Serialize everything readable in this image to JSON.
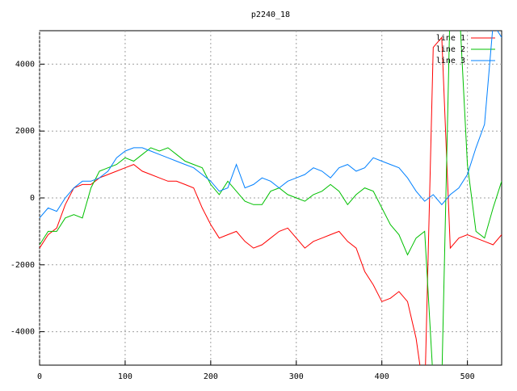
{
  "chart_data": {
    "type": "line",
    "title": "p2240_18",
    "x": [
      0,
      10,
      20,
      30,
      40,
      50,
      60,
      70,
      80,
      90,
      100,
      110,
      120,
      130,
      140,
      150,
      160,
      170,
      180,
      190,
      200,
      210,
      220,
      230,
      240,
      250,
      260,
      270,
      280,
      290,
      300,
      310,
      320,
      330,
      340,
      350,
      360,
      370,
      380,
      390,
      400,
      410,
      420,
      430,
      440,
      450,
      460,
      470,
      480,
      490,
      500,
      510,
      520,
      530,
      540
    ],
    "series": [
      {
        "name": "line 1",
        "color": "#ff0000",
        "values": [
          -1500,
          -1100,
          -900,
          -200,
          300,
          400,
          400,
          600,
          700,
          800,
          900,
          1000,
          800,
          700,
          600,
          500,
          500,
          400,
          300,
          -300,
          -800,
          -1200,
          -1100,
          -1000,
          -1300,
          -1500,
          -1400,
          -1200,
          -1000,
          -900,
          -1200,
          -1500,
          -1300,
          -1200,
          -1100,
          -1000,
          -1300,
          -1500,
          -2200,
          -2600,
          -3100,
          -3000,
          -2800,
          -3100,
          -4200,
          -6000,
          4500,
          4800,
          -1500,
          -1200,
          -1100,
          -1200,
          -1300,
          -1400,
          -1100
        ]
      },
      {
        "name": "line 2",
        "color": "#00c000",
        "values": [
          -1400,
          -1000,
          -1000,
          -600,
          -500,
          -600,
          300,
          800,
          900,
          1000,
          1200,
          1100,
          1300,
          1500,
          1400,
          1500,
          1300,
          1100,
          1000,
          900,
          400,
          100,
          500,
          200,
          -100,
          -200,
          -200,
          200,
          300,
          100,
          0,
          -100,
          100,
          200,
          400,
          200,
          -200,
          100,
          300,
          200,
          -300,
          -800,
          -1100,
          -1700,
          -1200,
          -1000,
          -5500,
          -5500,
          6000,
          6000,
          1000,
          -1000,
          -1200,
          -300,
          500
        ]
      },
      {
        "name": "line 3",
        "color": "#0080ff",
        "values": [
          -600,
          -300,
          -400,
          0,
          300,
          500,
          500,
          600,
          800,
          1200,
          1400,
          1500,
          1500,
          1400,
          1300,
          1200,
          1100,
          1000,
          900,
          700,
          500,
          200,
          300,
          1000,
          300,
          400,
          600,
          500,
          300,
          500,
          600,
          700,
          900,
          800,
          600,
          900,
          1000,
          800,
          900,
          1200,
          1100,
          1000,
          900,
          600,
          200,
          -100,
          100,
          -200,
          100,
          300,
          700,
          1500,
          2200,
          5200,
          4800
        ]
      }
    ],
    "xlim": [
      0,
      540
    ],
    "ylim": [
      -5000,
      5000
    ],
    "xticks": [
      0,
      100,
      200,
      300,
      400,
      500
    ],
    "yticks": [
      -4000,
      -2000,
      0,
      2000,
      4000
    ],
    "grid": true,
    "legend": "top-right"
  }
}
